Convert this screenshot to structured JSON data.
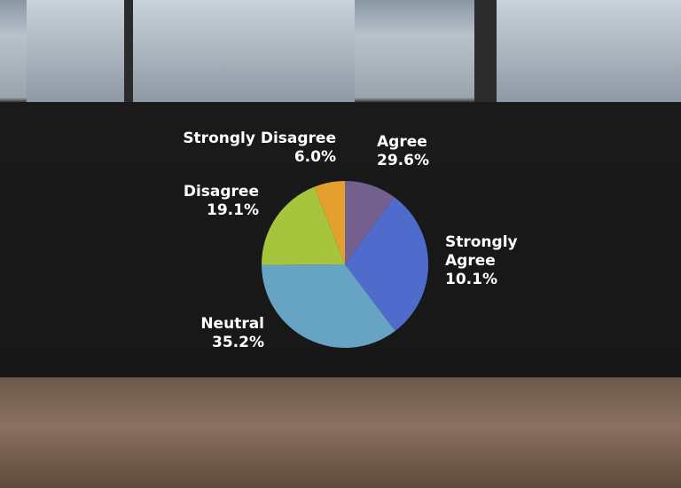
{
  "chart_data": {
    "type": "pie",
    "start": "top",
    "direction": "clockwise",
    "slices": [
      {
        "label": "Strongly Agree",
        "value": 10.1,
        "display": "10.1%",
        "color": "#74608f"
      },
      {
        "label": "Agree",
        "value": 29.6,
        "display": "29.6%",
        "color": "#4f6ccc"
      },
      {
        "label": "Neutral",
        "value": 35.2,
        "display": "35.2%",
        "color": "#67a3c2"
      },
      {
        "label": "Disagree",
        "value": 19.1,
        "display": "19.1%",
        "color": "#a6c43c"
      },
      {
        "label": "Strongly Disagree",
        "value": 6.0,
        "display": "6.0%",
        "color": "#e3a02e"
      }
    ]
  }
}
